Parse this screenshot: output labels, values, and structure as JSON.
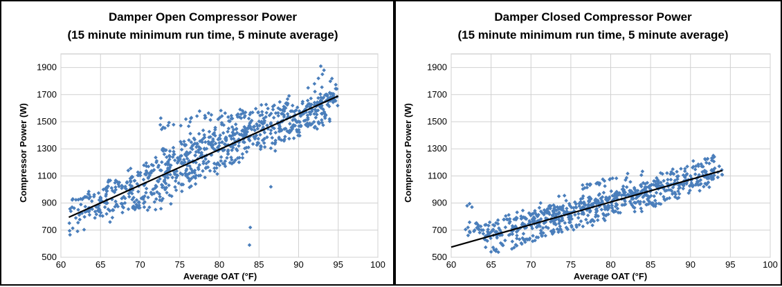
{
  "chart_data": [
    {
      "type": "scatter",
      "title": "Damper Open Compressor Power",
      "subtitle": "(15 minute minimum run time, 5 minute average)",
      "xlabel": "Average OAT (°F)",
      "ylabel": "Compressor Power (W)",
      "xlim": [
        60,
        100
      ],
      "ylim": [
        500,
        2000
      ],
      "xticks": [
        60,
        65,
        70,
        75,
        80,
        85,
        90,
        95,
        100
      ],
      "yticks": [
        500,
        700,
        900,
        1100,
        1300,
        1500,
        1700,
        1900
      ],
      "grid": true,
      "marker_color": "#4a7ebb",
      "trendline": {
        "x": [
          61,
          95
        ],
        "y": [
          795,
          1690
        ],
        "color": "#000000"
      },
      "bands": [
        {
          "x0": 61,
          "x1": 95,
          "y0": 800,
          "y1": 1690,
          "spread": 65,
          "n": 360
        },
        {
          "x0": 63,
          "x1": 95,
          "y0": 930,
          "y1": 1700,
          "spread": 28,
          "n": 190
        },
        {
          "x0": 68,
          "x1": 94,
          "y0": 880,
          "y1": 1560,
          "spread": 40,
          "n": 170
        },
        {
          "x0": 72,
          "x1": 89,
          "y0": 1230,
          "y1": 1640,
          "spread": 35,
          "n": 110
        },
        {
          "x0": 72.5,
          "x1": 87,
          "y0": 1480,
          "y1": 1600,
          "spread": 25,
          "n": 50
        },
        {
          "x0": 63,
          "x1": 74,
          "y0": 830,
          "y1": 920,
          "spread": 40,
          "n": 50
        }
      ],
      "points": [
        [
          83.8,
          590
        ],
        [
          83.9,
          720
        ],
        [
          86.5,
          1020
        ],
        [
          92,
          1780
        ],
        [
          92.5,
          1820
        ],
        [
          92.8,
          1910
        ],
        [
          93.2,
          1880
        ],
        [
          93,
          1850
        ],
        [
          91.2,
          1750
        ],
        [
          61.5,
          930
        ],
        [
          62.2,
          925
        ],
        [
          62.8,
          935
        ],
        [
          68.5,
          1140
        ],
        [
          68.8,
          1155
        ],
        [
          70.5,
          1030
        ],
        [
          66.2,
          760
        ]
      ]
    },
    {
      "type": "scatter",
      "title": "Damper Closed Compressor Power",
      "subtitle": "(15 minute minimum run time, 5 minute average)",
      "xlabel": "Average OAT (°F)",
      "ylabel": "Compressor Power (W)",
      "xlim": [
        60,
        100
      ],
      "ylim": [
        500,
        2000
      ],
      "xticks": [
        60,
        65,
        70,
        75,
        80,
        85,
        90,
        95,
        100
      ],
      "yticks": [
        500,
        700,
        900,
        1100,
        1300,
        1500,
        1700,
        1900
      ],
      "grid": true,
      "marker_color": "#4a7ebb",
      "trendline": {
        "x": [
          60,
          94
        ],
        "y": [
          575,
          1140
        ],
        "color": "#000000"
      },
      "bands": [
        {
          "x0": 62,
          "x1": 94,
          "y0": 690,
          "y1": 1135,
          "spread": 28,
          "n": 260
        },
        {
          "x0": 64,
          "x1": 93,
          "y0": 640,
          "y1": 1070,
          "spread": 30,
          "n": 220
        },
        {
          "x0": 65,
          "x1": 87,
          "y0": 550,
          "y1": 920,
          "spread": 18,
          "n": 90
        },
        {
          "x0": 72,
          "x1": 93,
          "y0": 760,
          "y1": 1230,
          "spread": 22,
          "n": 110
        },
        {
          "x0": 76,
          "x1": 84,
          "y0": 1010,
          "y1": 1120,
          "spread": 15,
          "n": 25
        },
        {
          "x0": 72,
          "x1": 86,
          "y0": 850,
          "y1": 1000,
          "spread": 25,
          "n": 70
        }
      ],
      "points": [
        [
          62,
          880
        ],
        [
          62.3,
          895
        ],
        [
          62.6,
          870
        ],
        [
          61.8,
          705
        ],
        [
          62.1,
          720
        ],
        [
          73.5,
          950
        ],
        [
          74.2,
          955
        ],
        [
          65,
          540
        ],
        [
          65.6,
          545
        ]
      ]
    }
  ]
}
